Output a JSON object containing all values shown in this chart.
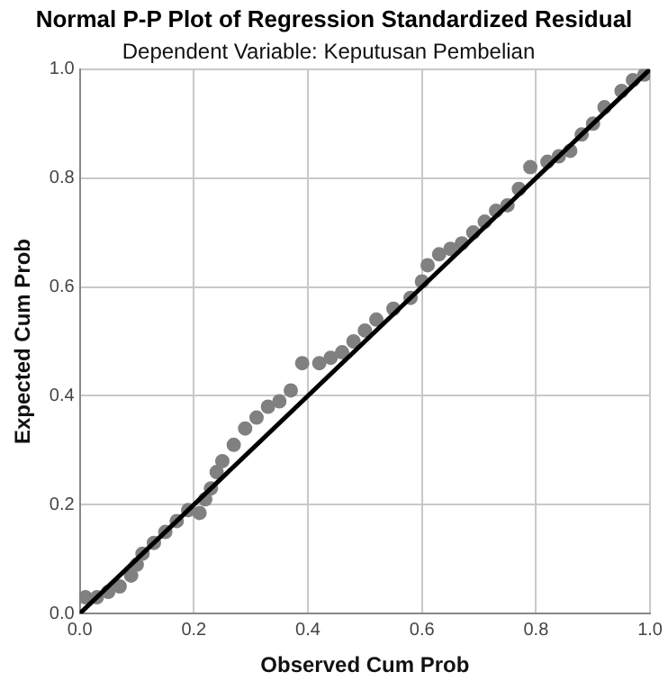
{
  "chart_data": {
    "type": "scatter",
    "title": "Normal P-P Plot of Regression Standardized Residual",
    "subtitle": "Dependent Variable: Keputusan Pembelian",
    "xlabel": "Observed Cum Prob",
    "ylabel": "Expected Cum Prob",
    "xlim": [
      0,
      1
    ],
    "ylim": [
      0,
      1
    ],
    "xticks": [
      {
        "value": 0,
        "label": "0.0"
      },
      {
        "value": 0.2,
        "label": "0.2"
      },
      {
        "value": 0.4,
        "label": "0.4"
      },
      {
        "value": 0.6,
        "label": "0.6"
      },
      {
        "value": 0.8,
        "label": "0.8"
      },
      {
        "value": 1,
        "label": "1.0"
      }
    ],
    "yticks": [
      {
        "value": 0,
        "label": "0.0"
      },
      {
        "value": 0.2,
        "label": "0.2"
      },
      {
        "value": 0.4,
        "label": "0.4"
      },
      {
        "value": 0.6,
        "label": "0.6"
      },
      {
        "value": 0.8,
        "label": "0.8"
      },
      {
        "value": 1,
        "label": "1.0"
      }
    ],
    "grid": true,
    "series": [
      {
        "marker": "circle",
        "color": "#808080",
        "x": [
          0.01,
          0.03,
          0.05,
          0.07,
          0.09,
          0.1,
          0.11,
          0.13,
          0.15,
          0.17,
          0.19,
          0.21,
          0.22,
          0.23,
          0.24,
          0.25,
          0.27,
          0.29,
          0.31,
          0.33,
          0.35,
          0.37,
          0.39,
          0.42,
          0.44,
          0.46,
          0.48,
          0.5,
          0.52,
          0.55,
          0.58,
          0.6,
          0.61,
          0.63,
          0.65,
          0.67,
          0.69,
          0.71,
          0.73,
          0.75,
          0.77,
          0.79,
          0.82,
          0.84,
          0.86,
          0.88,
          0.9,
          0.92,
          0.95,
          0.97,
          0.99
        ],
        "values": [
          0.03,
          0.03,
          0.04,
          0.05,
          0.07,
          0.09,
          0.11,
          0.13,
          0.15,
          0.17,
          0.19,
          0.185,
          0.21,
          0.23,
          0.26,
          0.28,
          0.31,
          0.34,
          0.36,
          0.38,
          0.39,
          0.41,
          0.46,
          0.46,
          0.47,
          0.48,
          0.5,
          0.52,
          0.54,
          0.56,
          0.58,
          0.61,
          0.64,
          0.66,
          0.67,
          0.68,
          0.7,
          0.72,
          0.74,
          0.75,
          0.78,
          0.82,
          0.83,
          0.84,
          0.85,
          0.88,
          0.9,
          0.93,
          0.96,
          0.98,
          0.99
        ]
      },
      {
        "type": "line",
        "marker": "none",
        "color": "#000000",
        "x": [
          0,
          1
        ],
        "values": [
          0,
          1
        ]
      }
    ]
  }
}
